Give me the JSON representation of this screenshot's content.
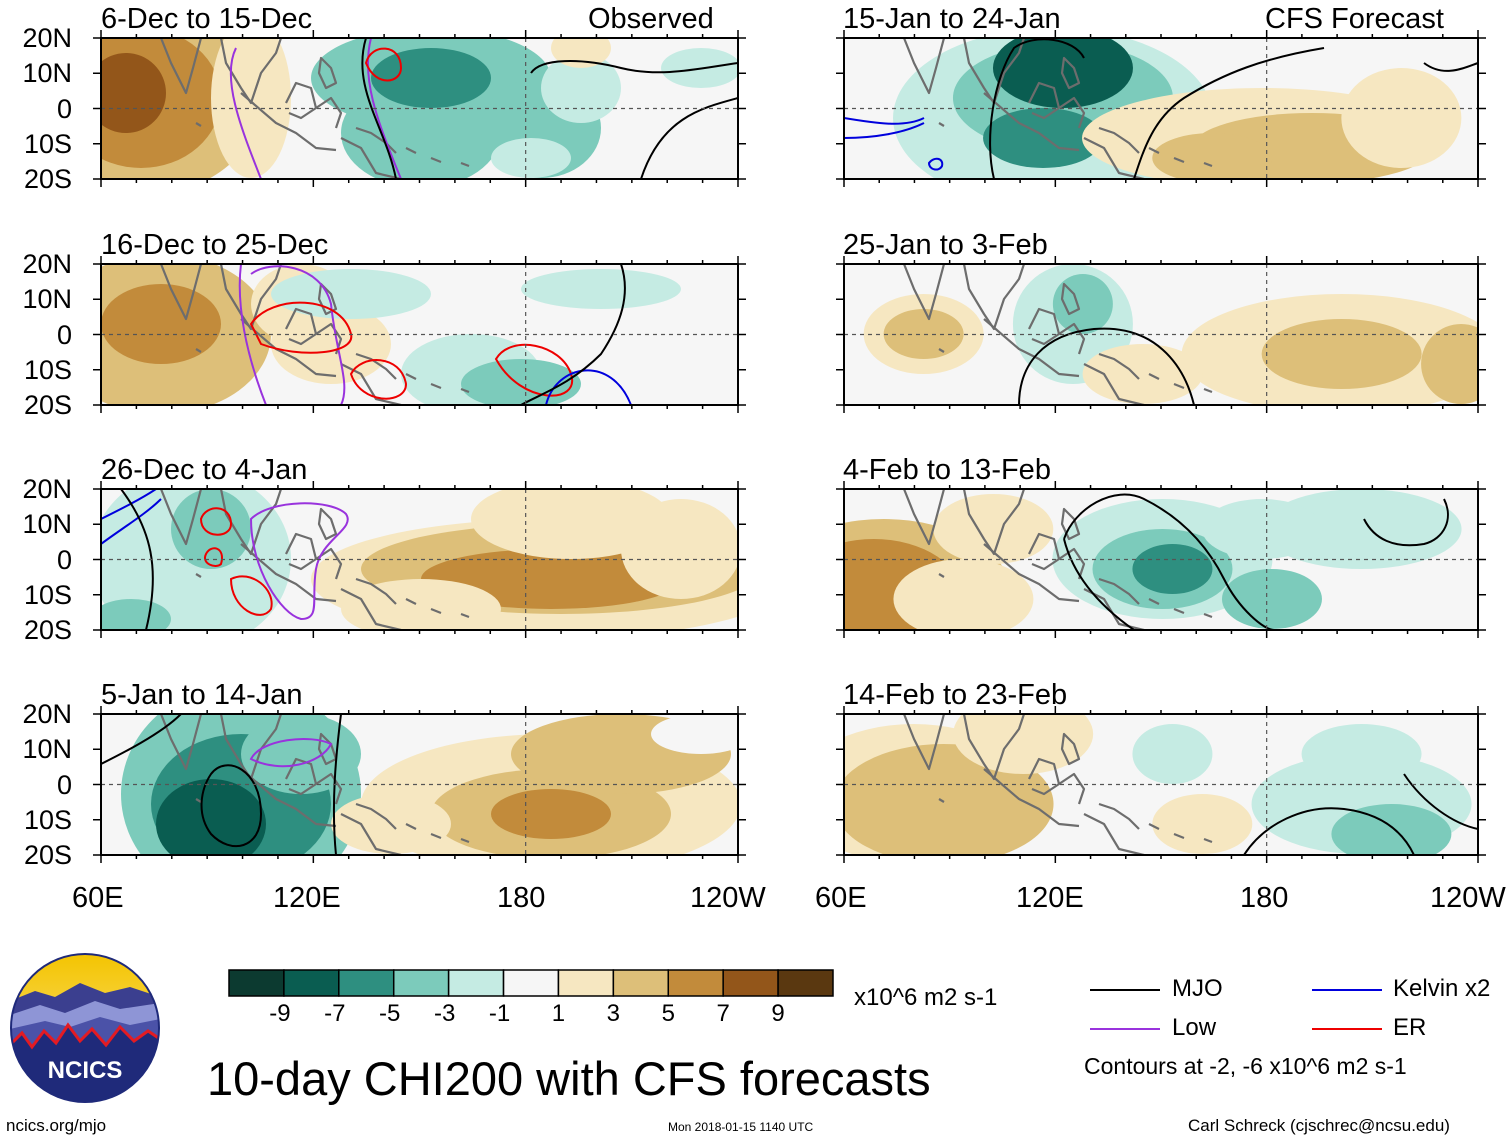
{
  "title": "10-day CHI200 with CFS forecasts",
  "labels": {
    "observed": "Observed",
    "forecast": "CFS Forecast"
  },
  "panels_left": [
    {
      "period": "6-Dec to 15-Dec"
    },
    {
      "period": "16-Dec to 25-Dec"
    },
    {
      "period": "26-Dec to 4-Jan"
    },
    {
      "period": "5-Jan to 14-Jan"
    }
  ],
  "panels_right": [
    {
      "period": "15-Jan to 24-Jan"
    },
    {
      "period": "25-Jan to 3-Feb"
    },
    {
      "period": "4-Feb to 13-Feb"
    },
    {
      "period": "14-Feb to 23-Feb"
    }
  ],
  "lat_ticks": [
    "20N",
    "10N",
    "0",
    "10S",
    "20S"
  ],
  "lon_ticks": [
    "60E",
    "120E",
    "180",
    "120W"
  ],
  "colorbar": {
    "colors": [
      "#0c3a30",
      "#0a5d51",
      "#2e8f80",
      "#7ccbbb",
      "#c5ebe3",
      "#f6f6f6",
      "#f6e7c1",
      "#ddbf79",
      "#c28b3b",
      "#93561a",
      "#5a3810"
    ],
    "ticks": [
      "-9",
      "-7",
      "-5",
      "-3",
      "-1",
      "1",
      "3",
      "5",
      "7",
      "9"
    ],
    "units": "x10^6 m2 s-1"
  },
  "legend": {
    "items": [
      {
        "name": "MJO",
        "color": "#000000"
      },
      {
        "name": "Kelvin x2",
        "color": "#0000dd"
      },
      {
        "name": "Low",
        "color": "#9933dd"
      },
      {
        "name": "ER",
        "color": "#ee0000"
      }
    ],
    "note": "Contours at -2, -6 x10^6 m2 s-1"
  },
  "footer": {
    "left": "ncics.org/mjo",
    "center": "Mon 2018-01-15 1140 UTC",
    "right": "Carl Schreck (cjschrec@ncsu.edu)"
  },
  "logo_text": "NCICS"
}
